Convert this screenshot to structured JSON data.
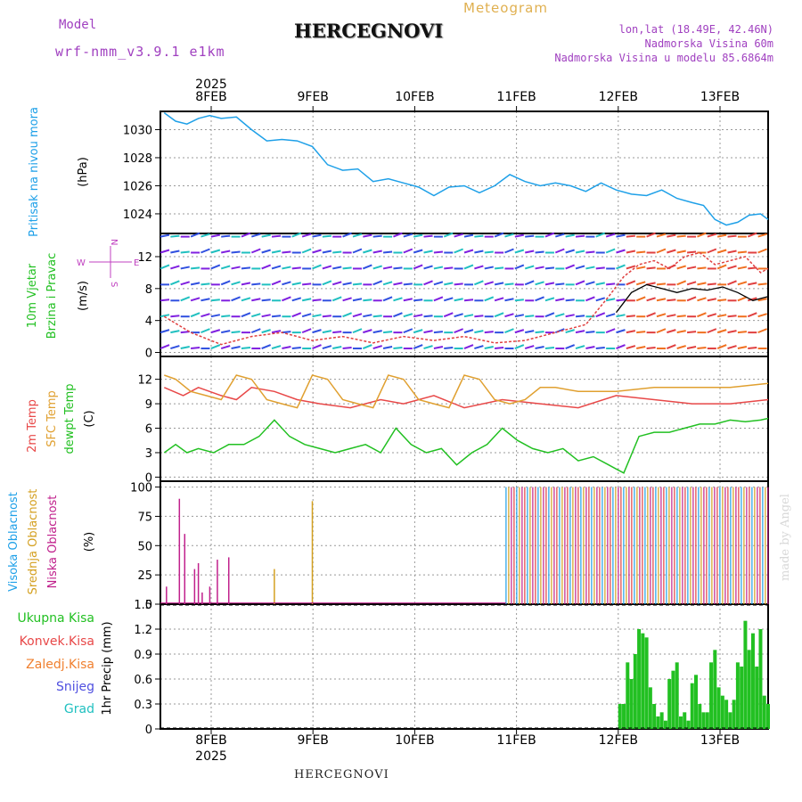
{
  "header": {
    "model_label": "Model",
    "model_name": "wrf-nmm_v3.9.1 e1km",
    "title": "HERCEGNOVI",
    "meteogram": "Meteogram",
    "lonlat": "lon,lat (18.49E, 42.46N)",
    "elevation": "Nadmorska Visina 60m",
    "model_elevation": "Nadmorska Visina u modelu 85.6864m",
    "footer_title": "HERCEGNOVI",
    "made_by": "made by Angel",
    "year_top": "2025",
    "year_bottom": "2025"
  },
  "colors": {
    "pressure": "#1ea0e8",
    "temp2m": "#e84848",
    "sfc": "#e0a030",
    "dewpt": "#22c022",
    "wind_speed": "#e04040",
    "wind_dir": "#000000",
    "high_cloud": "#1ea0e8",
    "mid_cloud": "#d4a020",
    "low_cloud": "#c0208c",
    "precip": "#22c022",
    "conv": "#e84848",
    "frz": "#f08030",
    "snow": "#5050e0",
    "hail": "#20c0c0"
  },
  "chart_data": [
    {
      "type": "line",
      "panel": "pressure",
      "ylabel_lines": [
        "Pritisak na nivou mora",
        "(hPa)"
      ],
      "yticks": [
        1024,
        1026,
        1028,
        1030
      ],
      "ylim": [
        1022.6,
        1031.3
      ],
      "x_days": [
        0.05,
        0.2,
        0.35,
        0.5,
        0.65,
        0.8,
        1.0,
        1.2,
        1.4,
        1.6,
        1.8,
        2.0,
        2.2,
        2.4,
        2.6,
        2.8,
        3.0,
        3.2,
        3.4,
        3.6,
        3.8,
        4.0,
        4.2,
        4.4,
        4.6,
        4.8,
        5.0,
        5.2,
        5.4,
        5.6,
        5.8,
        6.0,
        6.2,
        6.4,
        6.6,
        6.8,
        7.0,
        7.15,
        7.3,
        7.45,
        7.6,
        7.75,
        7.9,
        8.0
      ],
      "values": [
        1031.2,
        1030.6,
        1030.4,
        1030.8,
        1031.0,
        1030.8,
        1030.9,
        1030.0,
        1029.2,
        1029.3,
        1029.2,
        1028.8,
        1027.5,
        1027.1,
        1027.2,
        1026.3,
        1026.5,
        1026.2,
        1025.9,
        1025.3,
        1025.9,
        1026.0,
        1025.5,
        1026.0,
        1026.8,
        1026.3,
        1026.0,
        1026.2,
        1026.0,
        1025.6,
        1026.2,
        1025.7,
        1025.4,
        1025.3,
        1025.7,
        1025.1,
        1024.8,
        1024.6,
        1023.6,
        1023.2,
        1023.4,
        1023.9,
        1024.0,
        1023.6
      ]
    },
    {
      "type": "line",
      "panel": "wind",
      "ylabel_lines": [
        "10m Vjetar",
        "Brzina i Pravac",
        "(m/s)"
      ],
      "compass": [
        "N",
        "W",
        "E",
        "S"
      ],
      "yticks": [
        0,
        4,
        8,
        12
      ],
      "ylim": [
        -0.5,
        14.9
      ],
      "series": [
        {
          "kind": "speed",
          "x_days": [
            0.05,
            0.4,
            0.8,
            1.2,
            1.6,
            2.0,
            2.4,
            2.8,
            3.2,
            3.6,
            4.0,
            4.4,
            4.8,
            5.2,
            5.6,
            5.9,
            6.1,
            6.3,
            6.5,
            6.7,
            6.9,
            7.1,
            7.3,
            7.5,
            7.7,
            7.9,
            8.0
          ],
          "values": [
            4.5,
            2.5,
            1.0,
            2.0,
            2.5,
            1.5,
            2.0,
            1.2,
            2.0,
            1.5,
            2.0,
            1.2,
            1.5,
            2.5,
            3.5,
            7.0,
            9.5,
            11.0,
            11.5,
            10.5,
            12.0,
            12.5,
            11.0,
            11.5,
            12.0,
            10.0,
            10.5
          ]
        },
        {
          "kind": "direction",
          "x_days": [
            6.0,
            6.2,
            6.4,
            6.6,
            6.8,
            7.0,
            7.2,
            7.4,
            7.6,
            7.8,
            8.0
          ],
          "values": [
            5.0,
            7.5,
            8.5,
            8.0,
            7.5,
            8.0,
            7.8,
            8.2,
            7.5,
            6.5,
            7.0
          ]
        }
      ]
    },
    {
      "type": "line",
      "panel": "temperature",
      "ylabel_lines": [
        "2m Temp",
        "SFC Temp",
        "dewpt Temp",
        "(C)"
      ],
      "yticks": [
        0,
        3,
        6,
        9,
        12
      ],
      "ylim": [
        -0.5,
        14.8
      ],
      "series": [
        {
          "name": "2m Temp",
          "x_days": [
            0.05,
            0.3,
            0.5,
            0.8,
            1.0,
            1.2,
            1.5,
            1.8,
            2.1,
            2.5,
            2.9,
            3.2,
            3.6,
            4.0,
            4.5,
            5.0,
            5.5,
            6.0,
            6.5,
            7.0,
            7.5,
            8.0
          ],
          "values": [
            11,
            10,
            11,
            10,
            9.5,
            11,
            10.5,
            9.5,
            9,
            8.5,
            9.5,
            9,
            10,
            8.5,
            9.5,
            9,
            8.5,
            10,
            9.5,
            9,
            9,
            9.5
          ]
        },
        {
          "name": "SFC Temp",
          "x_days": [
            0.05,
            0.2,
            0.4,
            0.6,
            0.8,
            1.0,
            1.2,
            1.4,
            1.6,
            1.8,
            2.0,
            2.2,
            2.4,
            2.6,
            2.8,
            3.0,
            3.2,
            3.4,
            3.6,
            3.8,
            4.0,
            4.2,
            4.4,
            4.6,
            4.8,
            5.0,
            5.2,
            5.5,
            6.0,
            6.5,
            7.0,
            7.5,
            8.0
          ],
          "values": [
            12.5,
            12,
            10.5,
            10,
            9.5,
            12.5,
            12,
            9.5,
            9,
            8.5,
            12.5,
            12,
            9.5,
            9,
            8.5,
            12.5,
            12,
            9.5,
            9,
            8.5,
            12.5,
            12,
            9.5,
            9,
            9.5,
            11,
            11,
            10.5,
            10.5,
            11,
            11,
            11,
            11.5
          ]
        },
        {
          "name": "dewpt Temp",
          "x_days": [
            0.05,
            0.2,
            0.35,
            0.5,
            0.7,
            0.9,
            1.1,
            1.3,
            1.5,
            1.7,
            1.9,
            2.1,
            2.3,
            2.5,
            2.7,
            2.9,
            3.1,
            3.3,
            3.5,
            3.7,
            3.9,
            4.1,
            4.3,
            4.5,
            4.7,
            4.9,
            5.1,
            5.3,
            5.5,
            5.7,
            5.9,
            6.0,
            6.1,
            6.3,
            6.5,
            6.7,
            6.9,
            7.1,
            7.3,
            7.5,
            7.7,
            7.9,
            8.0
          ],
          "values": [
            3,
            4,
            3,
            3.5,
            3,
            4,
            4,
            5,
            7,
            5,
            4,
            3.5,
            3,
            3.5,
            4,
            3,
            6,
            4,
            3,
            3.5,
            1.5,
            3,
            4,
            6,
            4.5,
            3.5,
            3,
            3.5,
            2,
            2.5,
            1.5,
            1,
            0.5,
            5,
            5.5,
            5.5,
            6,
            6.5,
            6.5,
            7,
            6.8,
            7,
            7.2
          ]
        }
      ]
    },
    {
      "type": "bar",
      "panel": "cloud",
      "ylabel_lines": [
        "Visoka Oblacnost",
        "Srednja Oblacnost",
        "Niska Oblacnost",
        "(%)"
      ],
      "yticks": [
        0,
        25,
        50,
        75,
        100
      ],
      "ylim": [
        0,
        105
      ],
      "series": [
        {
          "name": "Niska Oblacnost",
          "x_days": [
            0.08,
            0.25,
            0.32,
            0.45,
            0.5,
            0.55,
            0.65,
            0.75,
            0.9
          ],
          "values": [
            15,
            90,
            60,
            30,
            35,
            10,
            15,
            38,
            40
          ]
        },
        {
          "name": "Srednja Oblacnost",
          "x_days": [
            1.5,
            2.0
          ],
          "values": [
            30,
            88
          ]
        },
        {
          "name": "dense-block",
          "x_days": [
            4.55,
            8.0
          ],
          "values": [
            100,
            100
          ]
        }
      ]
    },
    {
      "type": "bar",
      "panel": "precip",
      "ylabel_lines": [
        "Ukupna Kisa",
        "Konvek.Kisa",
        "Zaledj.Kisa",
        "Snijeg",
        "Grad",
        "1hr Precip (mm)"
      ],
      "yticks": [
        0,
        0.3,
        0.6,
        0.9,
        1.2,
        1.5
      ],
      "ylim": [
        0,
        1.5
      ],
      "x_days": [
        6.05,
        6.1,
        6.15,
        6.2,
        6.25,
        6.3,
        6.35,
        6.4,
        6.45,
        6.5,
        6.55,
        6.6,
        6.65,
        6.7,
        6.75,
        6.8,
        6.85,
        6.9,
        6.95,
        7.0,
        7.05,
        7.1,
        7.15,
        7.2,
        7.25,
        7.3,
        7.35,
        7.4,
        7.45,
        7.5,
        7.55,
        7.6,
        7.65,
        7.7,
        7.75,
        7.8,
        7.85,
        7.9,
        7.95,
        8.0
      ],
      "values": [
        0.3,
        0.3,
        0.8,
        0.6,
        0.9,
        1.2,
        1.15,
        1.1,
        0.5,
        0.3,
        0.15,
        0.2,
        0.1,
        0.6,
        0.7,
        0.8,
        0.15,
        0.2,
        0.1,
        0.55,
        0.65,
        0.3,
        0.2,
        0.2,
        0.8,
        0.95,
        0.5,
        0.4,
        0.35,
        0.2,
        0.35,
        0.8,
        0.75,
        1.3,
        0.95,
        1.15,
        0.75,
        1.2,
        0.4,
        0.3
      ]
    }
  ],
  "x_axis": {
    "days": [
      "8FEB",
      "9FEB",
      "10FEB",
      "11FEB",
      "12FEB",
      "13FEB"
    ],
    "day_offsets": [
      0.5,
      1.5,
      2.5,
      3.5,
      4.5,
      5.5
    ]
  }
}
